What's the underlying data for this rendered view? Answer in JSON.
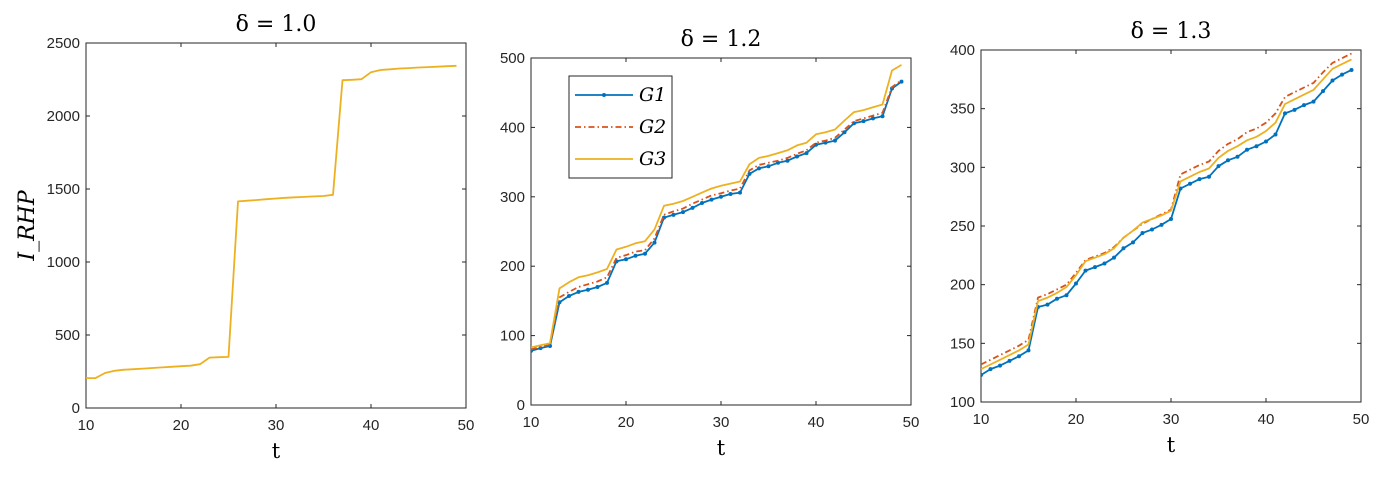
{
  "chart_data": [
    {
      "type": "line",
      "title": "δ = 1.0",
      "xlabel": "t",
      "ylabel": "I_RHP",
      "xlim": [
        10,
        50
      ],
      "ylim": [
        0,
        2500
      ],
      "xticks": [
        10,
        20,
        30,
        40,
        50
      ],
      "yticks": [
        0,
        500,
        1000,
        1500,
        2000,
        2500
      ],
      "legend": null,
      "series": [
        {
          "name": "",
          "color": "#EDB120",
          "style": "solid",
          "markers": false,
          "x": [
            10,
            11,
            12,
            13,
            14,
            15,
            16,
            17,
            18,
            19,
            20,
            21,
            22,
            23,
            24,
            25,
            26,
            27,
            28,
            29,
            30,
            31,
            32,
            33,
            34,
            35,
            36,
            37,
            38,
            39,
            40,
            41,
            42,
            43,
            44,
            45,
            46,
            47,
            48,
            49
          ],
          "y": [
            205,
            205,
            240,
            255,
            262,
            266,
            270,
            274,
            278,
            282,
            286,
            290,
            300,
            345,
            348,
            350,
            1415,
            1420,
            1425,
            1430,
            1435,
            1440,
            1443,
            1446,
            1449,
            1452,
            1460,
            2245,
            2248,
            2252,
            2300,
            2315,
            2320,
            2325,
            2328,
            2332,
            2335,
            2338,
            2341,
            2344
          ]
        }
      ]
    },
    {
      "type": "line",
      "title": "δ = 1.2",
      "xlabel": "t",
      "ylabel": "",
      "xlim": [
        10,
        50
      ],
      "ylim": [
        0,
        500
      ],
      "xticks": [
        10,
        20,
        30,
        40,
        50
      ],
      "yticks": [
        0,
        100,
        200,
        300,
        400,
        500
      ],
      "legend": "top-left",
      "series": [
        {
          "name": "G1",
          "color": "#0072BD",
          "style": "solid",
          "markers": true,
          "x": [
            10,
            11,
            12,
            13,
            14,
            15,
            16,
            17,
            18,
            19,
            20,
            21,
            22,
            23,
            24,
            25,
            26,
            27,
            28,
            29,
            30,
            31,
            32,
            33,
            34,
            35,
            36,
            37,
            38,
            39,
            40,
            41,
            42,
            43,
            44,
            45,
            46,
            47,
            48,
            49
          ],
          "y": [
            78,
            82,
            85,
            148,
            157,
            163,
            166,
            170,
            176,
            207,
            210,
            215,
            218,
            234,
            270,
            274,
            278,
            284,
            291,
            296,
            300,
            304,
            306,
            333,
            341,
            344,
            349,
            352,
            358,
            363,
            375,
            378,
            381,
            393,
            406,
            409,
            413,
            416,
            456,
            466
          ]
        },
        {
          "name": "G2",
          "color": "#D95319",
          "style": "dashdot",
          "markers": false,
          "x": [
            10,
            11,
            12,
            13,
            14,
            15,
            16,
            17,
            18,
            19,
            20,
            21,
            22,
            23,
            24,
            25,
            26,
            27,
            28,
            29,
            30,
            31,
            32,
            33,
            34,
            35,
            36,
            37,
            38,
            39,
            40,
            41,
            42,
            43,
            44,
            45,
            46,
            47,
            48,
            49
          ],
          "y": [
            80,
            84,
            87,
            155,
            163,
            170,
            174,
            178,
            184,
            212,
            216,
            221,
            223,
            240,
            274,
            279,
            283,
            290,
            296,
            302,
            305,
            309,
            312,
            338,
            346,
            349,
            352,
            356,
            362,
            367,
            378,
            381,
            385,
            397,
            409,
            413,
            417,
            421,
            458,
            468
          ]
        },
        {
          "name": "G3",
          "color": "#EDB120",
          "style": "solid",
          "markers": false,
          "x": [
            10,
            11,
            12,
            13,
            14,
            15,
            16,
            17,
            18,
            19,
            20,
            21,
            22,
            23,
            24,
            25,
            26,
            27,
            28,
            29,
            30,
            31,
            32,
            33,
            34,
            35,
            36,
            37,
            38,
            39,
            40,
            41,
            42,
            43,
            44,
            45,
            46,
            47,
            48,
            49
          ],
          "y": [
            83,
            86,
            89,
            168,
            177,
            184,
            187,
            191,
            196,
            224,
            228,
            233,
            236,
            253,
            287,
            290,
            294,
            300,
            306,
            312,
            316,
            319,
            322,
            347,
            356,
            359,
            363,
            367,
            374,
            378,
            390,
            393,
            397,
            410,
            422,
            425,
            429,
            433,
            482,
            490
          ]
        }
      ]
    },
    {
      "type": "line",
      "title": "δ = 1.3",
      "xlabel": "t",
      "ylabel": "",
      "xlim": [
        10,
        50
      ],
      "ylim": [
        100,
        400
      ],
      "xticks": [
        10,
        20,
        30,
        40,
        50
      ],
      "yticks": [
        100,
        150,
        200,
        250,
        300,
        350,
        400
      ],
      "legend": null,
      "series": [
        {
          "name": "G1",
          "color": "#0072BD",
          "style": "solid",
          "markers": true,
          "x": [
            10,
            11,
            12,
            13,
            14,
            15,
            16,
            17,
            18,
            19,
            20,
            21,
            22,
            23,
            24,
            25,
            26,
            27,
            28,
            29,
            30,
            31,
            32,
            33,
            34,
            35,
            36,
            37,
            38,
            39,
            40,
            41,
            42,
            43,
            44,
            45,
            46,
            47,
            48,
            49
          ],
          "y": [
            123,
            128,
            131,
            135,
            139,
            144,
            181,
            183,
            188,
            191,
            201,
            212,
            215,
            218,
            223,
            231,
            236,
            244,
            247,
            251,
            256,
            282,
            286,
            290,
            292,
            301,
            306,
            309,
            315,
            318,
            322,
            328,
            346,
            349,
            353,
            356,
            365,
            374,
            379,
            383
          ]
        },
        {
          "name": "G2",
          "color": "#D95319",
          "style": "dashdot",
          "markers": false,
          "x": [
            10,
            11,
            12,
            13,
            14,
            15,
            16,
            17,
            18,
            19,
            20,
            21,
            22,
            23,
            24,
            25,
            26,
            27,
            28,
            29,
            30,
            31,
            32,
            33,
            34,
            35,
            36,
            37,
            38,
            39,
            40,
            41,
            42,
            43,
            44,
            45,
            46,
            47,
            48,
            49
          ],
          "y": [
            132,
            136,
            140,
            144,
            148,
            153,
            189,
            192,
            196,
            200,
            210,
            221,
            224,
            227,
            232,
            240,
            246,
            252,
            256,
            260,
            264,
            294,
            298,
            302,
            305,
            314,
            320,
            324,
            330,
            333,
            338,
            346,
            360,
            364,
            368,
            372,
            381,
            389,
            393,
            397
          ]
        },
        {
          "name": "G3",
          "color": "#EDB120",
          "style": "solid",
          "markers": false,
          "x": [
            10,
            11,
            12,
            13,
            14,
            15,
            16,
            17,
            18,
            19,
            20,
            21,
            22,
            23,
            24,
            25,
            26,
            27,
            28,
            29,
            30,
            31,
            32,
            33,
            34,
            35,
            36,
            37,
            38,
            39,
            40,
            41,
            42,
            43,
            44,
            45,
            46,
            47,
            48,
            49
          ],
          "y": [
            128,
            132,
            136,
            140,
            144,
            149,
            186,
            189,
            193,
            198,
            208,
            220,
            223,
            226,
            231,
            240,
            246,
            253,
            256,
            259,
            263,
            288,
            292,
            296,
            299,
            308,
            314,
            318,
            323,
            326,
            331,
            338,
            354,
            358,
            362,
            366,
            375,
            384,
            388,
            392
          ]
        }
      ]
    }
  ]
}
